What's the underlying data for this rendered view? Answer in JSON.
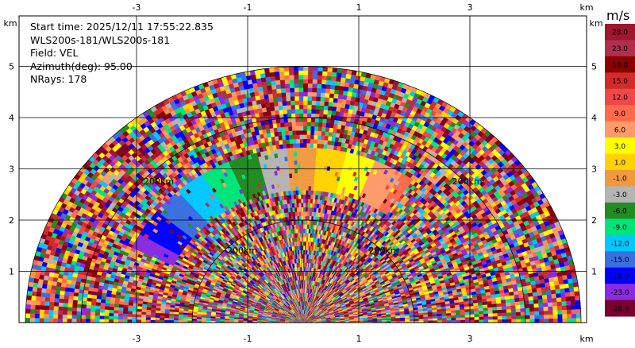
{
  "info": {
    "start_time": "Start time: 2025/12/11 17:55:22.835",
    "site": "WLS200s-181/WLS200s-181",
    "field": "Field: VEL",
    "azimuth": "Azimuth(deg): 95.00",
    "nrays": "NRays: 178"
  },
  "colorbar": {
    "unit": "m/s",
    "levels": [
      "28.0",
      "23.0",
      "18.0",
      "15.0",
      "12.0",
      "9.0",
      "6.0",
      "3.0",
      "1.0",
      "-1.0",
      "-3.0",
      "-6.0",
      "-9.0",
      "-12.0",
      "-15.0",
      "-18.0",
      "-23.0",
      "-28.0"
    ],
    "colors": [
      "#a01530",
      "#b0304c",
      "#8b0000",
      "#d22b2b",
      "#f04848",
      "#ff6a4a",
      "#ff9a6a",
      "#ffff00",
      "#ffd200",
      "#f09a40",
      "#b4b4b4",
      "#228b22",
      "#00e47a",
      "#00c8ff",
      "#3a6fe0",
      "#0000ff",
      "#8a2be2",
      "#7a0030"
    ]
  },
  "chart_data": {
    "type": "heatmap",
    "title": "",
    "xlabel": "km",
    "ylabel": "km",
    "x_ticks": [
      "-3",
      "-1",
      "1",
      "3"
    ],
    "y_ticks": [
      "1",
      "2",
      "3",
      "4",
      "5"
    ],
    "x_unit": "km",
    "y_unit": "km",
    "range_ring_labels": [
      "200km",
      "200km",
      "200km",
      "200km"
    ],
    "xlim": [
      -5.5,
      5.5
    ],
    "ylim": [
      0,
      5.6
    ],
    "max_range_km": 5.0,
    "field": "VEL",
    "units": "m/s",
    "nrays": 178
  }
}
